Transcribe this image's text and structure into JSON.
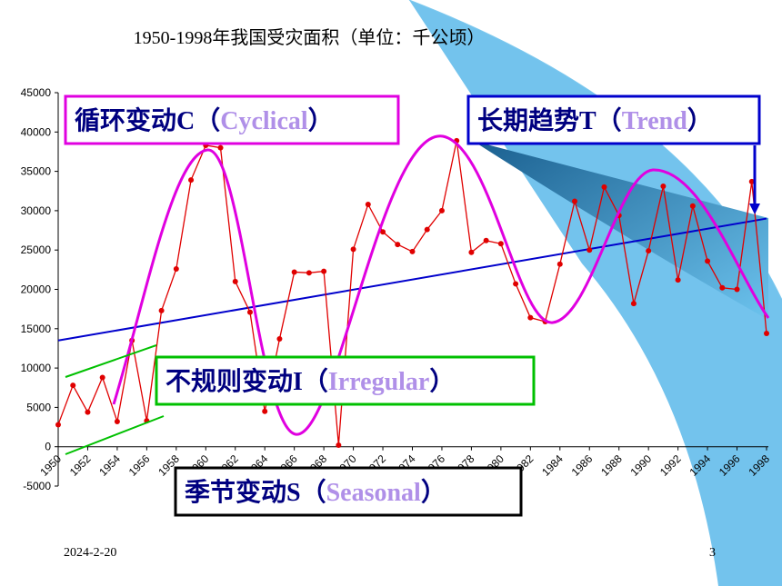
{
  "chart_data": {
    "type": "line",
    "title": "1950-1998年我国受灾面积（单位：千公顷）",
    "x": [
      1950,
      1951,
      1952,
      1953,
      1954,
      1955,
      1956,
      1957,
      1958,
      1959,
      1960,
      1961,
      1962,
      1963,
      1964,
      1965,
      1966,
      1967,
      1968,
      1969,
      1970,
      1971,
      1972,
      1973,
      1974,
      1975,
      1976,
      1977,
      1978,
      1979,
      1980,
      1981,
      1982,
      1983,
      1984,
      1985,
      1986,
      1987,
      1988,
      1989,
      1990,
      1991,
      1992,
      1993,
      1994,
      1995,
      1996,
      1997,
      1998
    ],
    "series": [
      {
        "color": "#e00000",
        "values": [
          2800,
          7800,
          4400,
          8800,
          3200,
          13500,
          3300,
          17300,
          22600,
          33900,
          38300,
          38000,
          21000,
          17100,
          4500,
          13700,
          22200,
          22100,
          22300,
          200,
          25100,
          30800,
          27300,
          25700,
          24800,
          27600,
          30000,
          38900,
          24700,
          26200,
          25800,
          20700,
          16400,
          15900,
          23200,
          31200,
          25000,
          33000,
          29400,
          18200,
          24900,
          33100,
          21200,
          30600,
          23600,
          20200,
          20000,
          33700,
          14400
        ]
      }
    ],
    "trend": {
      "color": "#0000cc",
      "x": [
        1950,
        1998
      ],
      "values": [
        13500,
        29000
      ]
    },
    "xlim": [
      1950,
      1998
    ],
    "xticks": [
      1950,
      1952,
      1954,
      1956,
      1958,
      1960,
      1962,
      1964,
      1966,
      1968,
      1970,
      1972,
      1974,
      1976,
      1978,
      1980,
      1982,
      1984,
      1986,
      1988,
      1990,
      1992,
      1994,
      1996,
      1998
    ],
    "ylim": [
      -5000,
      45000
    ],
    "yticks": [
      -5000,
      0,
      5000,
      10000,
      15000,
      20000,
      25000,
      30000,
      35000,
      40000,
      45000
    ],
    "annotations": [
      {
        "color": "#e000e0",
        "label": [
          "循环变动C（",
          "Cyclical",
          "）"
        ]
      },
      {
        "color": "#0000cc",
        "label": [
          "长期趋势T（",
          "Trend",
          "）"
        ]
      },
      {
        "color": "#00c000",
        "label": [
          "不规则变动I（",
          "Irregular",
          "）"
        ]
      },
      {
        "color": "#000000",
        "label": [
          "季节变动S（",
          "Seasonal",
          "）"
        ]
      }
    ]
  },
  "footer": {
    "date": "2024-2-20",
    "page": "3"
  }
}
